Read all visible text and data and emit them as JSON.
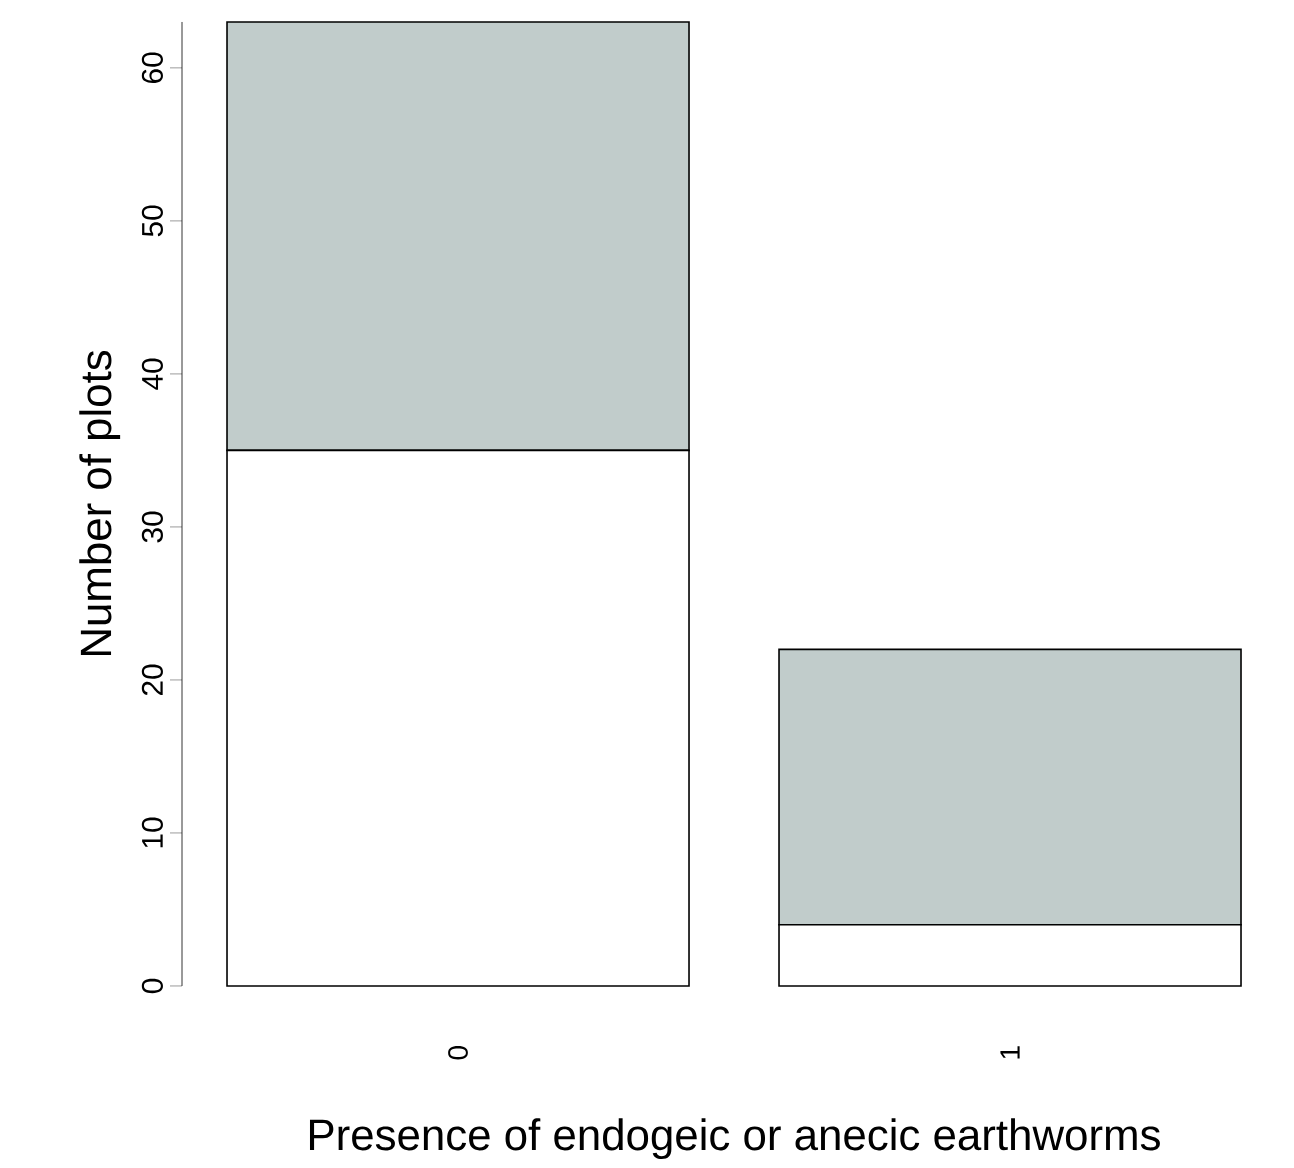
{
  "chart_data": {
    "type": "bar",
    "stacked": true,
    "xlabel": "Presence of endogeic or anecic earthworms",
    "ylabel": "Number of plots",
    "categories": [
      "0",
      "1"
    ],
    "series": [
      {
        "color": "#ffffff",
        "values": [
          35,
          4
        ]
      },
      {
        "color": "#c1cccb",
        "values": [
          28,
          18
        ]
      }
    ],
    "ylim": [
      0,
      63
    ],
    "yticks": [
      0,
      10,
      20,
      30,
      40,
      50,
      60
    ],
    "grid": false
  }
}
